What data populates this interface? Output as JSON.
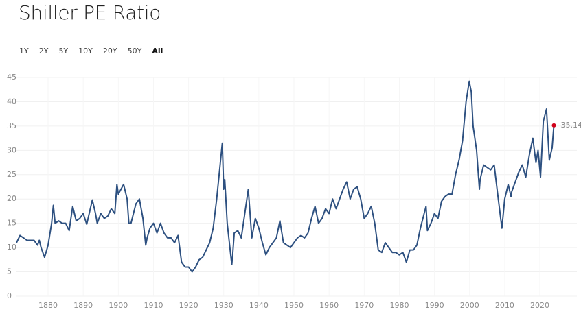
{
  "chart_data": {
    "type": "line",
    "title": "Shiller PE Ratio",
    "range_options": [
      "1Y",
      "2Y",
      "5Y",
      "10Y",
      "20Y",
      "50Y",
      "All"
    ],
    "x": [
      1871,
      1872,
      1874,
      1876,
      1877,
      1877.5,
      1878,
      1879,
      1880,
      1881,
      1881.5,
      1882,
      1883,
      1884,
      1885,
      1886,
      1887,
      1888,
      1889,
      1890,
      1891,
      1892.6,
      1893.5,
      1894,
      1895,
      1896,
      1897,
      1898,
      1899,
      1899.6,
      1900,
      1901.5,
      1902.5,
      1903,
      1903.6,
      1905,
      1906,
      1907,
      1907.8,
      1908.2,
      1909,
      1910,
      1911,
      1912,
      1913,
      1914,
      1915,
      1916,
      1917,
      1918,
      1919,
      1920,
      1921,
      1922,
      1923,
      1924,
      1925,
      1926,
      1927,
      1928,
      1929.6,
      1930,
      1930.3,
      1931,
      1932.3,
      1932.6,
      1933,
      1934,
      1935,
      1936,
      1937,
      1938,
      1939,
      1940,
      1941,
      1942,
      1943,
      1944,
      1945,
      1946,
      1947,
      1948,
      1949,
      1950,
      1951,
      1952,
      1953,
      1954,
      1955,
      1956,
      1957,
      1958,
      1959,
      1960,
      1961,
      1962,
      1963,
      1964,
      1965,
      1966,
      1967,
      1968,
      1969,
      1970,
      1971,
      1972,
      1973,
      1974,
      1975,
      1976,
      1977,
      1978,
      1979,
      1980,
      1981,
      1982,
      1983,
      1984,
      1985,
      1986,
      1987.6,
      1988,
      1989,
      1990,
      1991,
      1992,
      1993,
      1994,
      1995,
      1996,
      1997,
      1998,
      1999,
      1999.9,
      2000.5,
      2001,
      2002,
      2002.8,
      2003,
      2004,
      2005,
      2006,
      2007,
      2008,
      2009.2,
      2010,
      2011,
      2011.8,
      2012,
      2013,
      2014,
      2015,
      2016,
      2017,
      2018,
      2018.9,
      2019.5,
      2020.2,
      2021,
      2021.9,
      2022.7,
      2023,
      2023.5,
      2024
    ],
    "values": [
      11,
      12.5,
      11.5,
      11.5,
      10.5,
      11.5,
      10,
      8,
      10.5,
      15,
      18.7,
      15,
      15.5,
      15,
      15,
      13.5,
      18.5,
      15.5,
      16,
      17,
      14.8,
      19.8,
      17,
      15,
      17,
      16,
      16.5,
      18,
      17,
      23,
      21,
      23,
      20,
      15,
      15,
      19,
      20,
      16,
      10.5,
      12,
      14,
      15,
      13,
      15,
      13,
      12,
      12,
      11,
      12.5,
      7,
      6,
      6,
      5,
      6,
      7.5,
      8,
      9.5,
      11,
      14,
      20,
      31.5,
      22,
      24,
      15,
      6.5,
      9,
      13,
      13.5,
      12,
      17,
      22,
      12,
      16,
      14,
      11,
      8.5,
      10,
      11,
      12,
      15.5,
      11,
      10.5,
      10,
      11,
      12,
      12.5,
      12,
      13,
      16,
      18.5,
      15,
      16,
      18,
      17,
      20,
      18,
      20,
      22,
      23.5,
      20,
      22,
      22.5,
      20,
      16,
      17,
      18.5,
      15,
      9.5,
      9,
      11,
      10,
      9,
      9,
      8.5,
      9,
      7,
      9.5,
      9.5,
      10.5,
      14,
      18.5,
      13.5,
      15,
      17,
      16,
      19.5,
      20.5,
      21,
      21,
      25,
      28,
      32,
      40,
      44.2,
      42,
      35,
      30,
      22,
      24,
      27,
      26.5,
      26,
      27,
      21,
      14,
      20,
      23,
      20.5,
      21.5,
      23.5,
      25.5,
      27,
      24.5,
      29,
      32.5,
      27.5,
      30,
      24.5,
      36,
      38.5,
      28,
      29,
      30.5,
      35.14
    ],
    "color": "#2d5080",
    "last_point_color": "#d0021b",
    "xlim": [
      1871,
      2024
    ],
    "xticks": [
      1880,
      1890,
      1900,
      1910,
      1920,
      1930,
      1940,
      1950,
      1960,
      1970,
      1980,
      1990,
      2000,
      2010,
      2020
    ],
    "ylim": [
      0,
      45
    ],
    "yticks": [
      0,
      5,
      10,
      15,
      20,
      25,
      30,
      35,
      40,
      45
    ],
    "grid": true
  }
}
